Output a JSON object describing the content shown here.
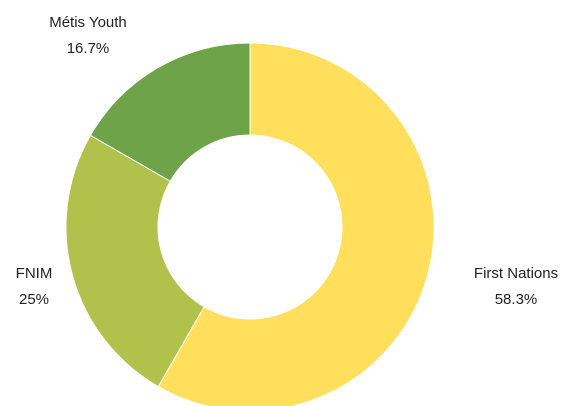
{
  "chart_data": {
    "type": "pie",
    "donut": true,
    "title": "",
    "unit": "%",
    "slices": [
      {
        "label": "First Nations",
        "value_label": "58.3%",
        "value": 58.3,
        "color": "#FFDF5B"
      },
      {
        "label": "FNIM",
        "value_label": "25%",
        "value": 25.0,
        "color": "#B1C24C"
      },
      {
        "label": "Métis Youth",
        "value_label": "16.7%",
        "value": 16.7,
        "color": "#6FA34A"
      }
    ],
    "start_angle_deg": 0,
    "direction": "clockwise"
  }
}
